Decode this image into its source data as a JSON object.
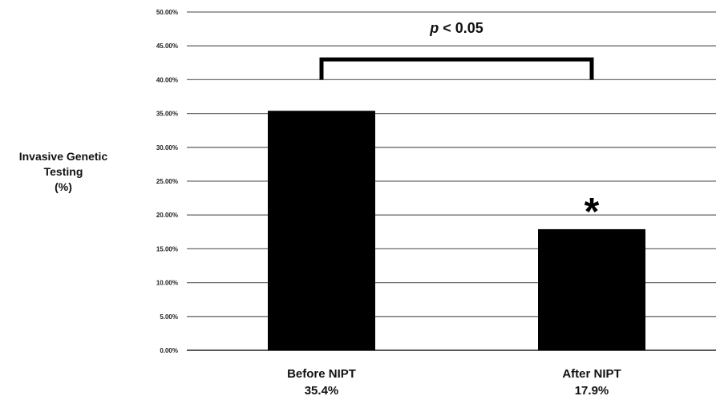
{
  "chart_data": {
    "type": "bar",
    "title": "",
    "xlabel": "",
    "ylabel_lines": [
      "Invasive Genetic",
      "Testing",
      "(%)"
    ],
    "categories": [
      {
        "label": "Before NIPT",
        "value_label": "35.4%"
      },
      {
        "label": "After NIPT",
        "value_label": "17.9%"
      }
    ],
    "values": [
      35.4,
      17.9
    ],
    "ylim": [
      0,
      50
    ],
    "yticks": [
      "0.00%",
      "5.00%",
      "10.00%",
      "15.00%",
      "20.00%",
      "25.00%",
      "30.00%",
      "35.00%",
      "40.00%",
      "45.00%",
      "50.00%"
    ],
    "grid": true,
    "bar_color": "#000000",
    "significance": {
      "p_symbol": "p",
      "p_rest": " < 0.05",
      "bracket_top_value": 43,
      "bracket_bottom_value": 40,
      "marker": "*",
      "marker_category_index": 1
    }
  }
}
